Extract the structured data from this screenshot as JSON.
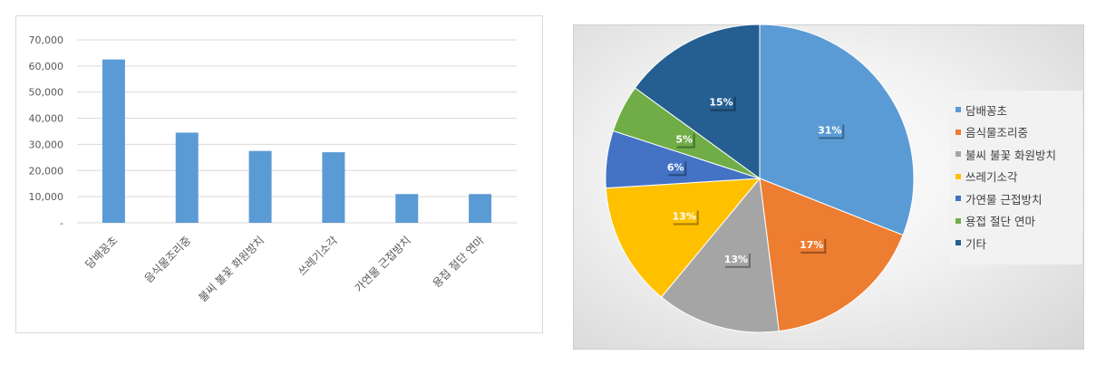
{
  "chart_data": [
    {
      "type": "bar",
      "title": "",
      "xlabel": "",
      "ylabel": "",
      "ylim": [
        0,
        70000
      ],
      "yticks": [
        "-",
        "10,000",
        "20,000",
        "30,000",
        "40,000",
        "50,000",
        "60,000",
        "70,000"
      ],
      "grid": true,
      "categories": [
        "담배꽁초",
        "음식물조리중",
        "불씨 불꽃 화원방치",
        "쓰레기소각",
        "가연물 근접방치",
        "용접 절단 연마"
      ],
      "values": [
        62500,
        34500,
        27500,
        27000,
        11000,
        11000
      ],
      "color": "#5b9bd5"
    },
    {
      "type": "pie",
      "title": "",
      "legend_position": "right",
      "labels": [
        "담배꽁초",
        "음식물조리중",
        "불씨 불꽃 화원방치",
        "쓰레기소각",
        "가연물 근접방치",
        "용접 절단 연마",
        "기타"
      ],
      "values": [
        31,
        17,
        13,
        13,
        6,
        5,
        15
      ],
      "value_labels": [
        "31%",
        "17%",
        "13%",
        "13%",
        "6%",
        "5%",
        "15%"
      ],
      "colors": [
        "#5b9bd5",
        "#ed7d31",
        "#a5a5a5",
        "#ffc000",
        "#4472c4",
        "#70ad47",
        "#255e91"
      ]
    }
  ]
}
